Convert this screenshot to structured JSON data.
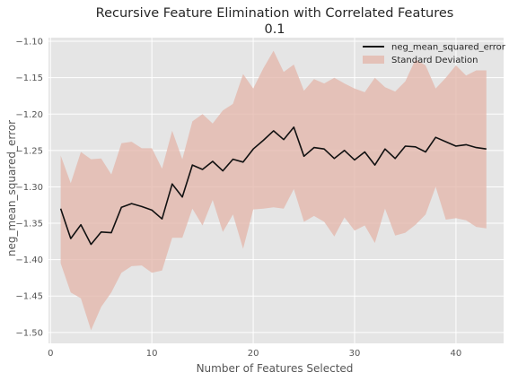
{
  "chart_data": {
    "type": "line",
    "title": "Recursive Feature Elimination with Correlated Features",
    "subtitle": "0.1",
    "xlabel": "Number of Features Selected",
    "ylabel": "neg_mean_squared_error",
    "xlim": [
      -0.2,
      44.7
    ],
    "ylim": [
      -1.515,
      -1.095
    ],
    "xticks": [
      0,
      10,
      20,
      30,
      40
    ],
    "yticks": [
      -1.5,
      -1.45,
      -1.4,
      -1.35,
      -1.3,
      -1.25,
      -1.2,
      -1.15,
      -1.1
    ],
    "ytick_labels": [
      "−1.50",
      "−1.45",
      "−1.40",
      "−1.35",
      "−1.30",
      "−1.25",
      "−1.20",
      "−1.15",
      "−1.10"
    ],
    "grid": true,
    "legend_position": "top-right",
    "colors": {
      "line": "#111111",
      "band": "#e3b4a8",
      "background": "#e5e5e5",
      "grid": "#ffffff"
    },
    "series": [
      {
        "name": "neg_mean_squared_error",
        "x": [
          1,
          2,
          3,
          4,
          5,
          6,
          7,
          8,
          9,
          10,
          11,
          12,
          13,
          14,
          15,
          16,
          17,
          18,
          19,
          20,
          21,
          22,
          23,
          24,
          25,
          26,
          27,
          28,
          29,
          30,
          31,
          32,
          33,
          34,
          35,
          36,
          37,
          38,
          39,
          40,
          41,
          42,
          43
        ],
        "values": [
          -1.33,
          -1.371,
          -1.352,
          -1.379,
          -1.362,
          -1.363,
          -1.328,
          -1.323,
          -1.327,
          -1.332,
          -1.344,
          -1.296,
          -1.314,
          -1.27,
          -1.276,
          -1.265,
          -1.278,
          -1.262,
          -1.266,
          -1.248,
          -1.236,
          -1.223,
          -1.235,
          -1.218,
          -1.258,
          -1.246,
          -1.248,
          -1.261,
          -1.25,
          -1.263,
          -1.252,
          -1.27,
          -1.248,
          -1.261,
          -1.244,
          -1.245,
          -1.252,
          -1.232,
          -1.238,
          -1.244,
          -1.242,
          -1.246,
          -1.248
        ]
      }
    ],
    "band": {
      "name": "Standard Deviation",
      "upper": [
        -1.257,
        -1.295,
        -1.252,
        -1.262,
        -1.261,
        -1.283,
        -1.24,
        -1.238,
        -1.247,
        -1.247,
        -1.275,
        -1.223,
        -1.262,
        -1.21,
        -1.2,
        -1.213,
        -1.195,
        -1.186,
        -1.145,
        -1.165,
        -1.137,
        -1.113,
        -1.142,
        -1.132,
        -1.168,
        -1.152,
        -1.158,
        -1.15,
        -1.158,
        -1.165,
        -1.17,
        -1.15,
        -1.163,
        -1.169,
        -1.155,
        -1.125,
        -1.133,
        -1.165,
        -1.15,
        -1.133,
        -1.147,
        -1.14,
        -1.14
      ],
      "lower": [
        -1.405,
        -1.445,
        -1.453,
        -1.497,
        -1.465,
        -1.445,
        -1.418,
        -1.409,
        -1.408,
        -1.418,
        -1.415,
        -1.37,
        -1.37,
        -1.33,
        -1.353,
        -1.318,
        -1.362,
        -1.338,
        -1.385,
        -1.331,
        -1.33,
        -1.328,
        -1.33,
        -1.303,
        -1.348,
        -1.34,
        -1.348,
        -1.368,
        -1.342,
        -1.36,
        -1.353,
        -1.377,
        -1.33,
        -1.367,
        -1.363,
        -1.352,
        -1.338,
        -1.3,
        -1.345,
        -1.343,
        -1.346,
        -1.355,
        -1.357
      ]
    }
  }
}
